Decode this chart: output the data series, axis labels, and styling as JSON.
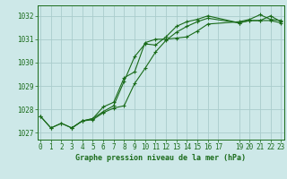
{
  "background_color": "#cde8e8",
  "grid_color": "#aacccc",
  "line_color": "#1a6b1a",
  "marker_color": "#1a6b1a",
  "xlabel": "Graphe pression niveau de la mer (hPa)",
  "xlabel_fontsize": 6.0,
  "tick_fontsize": 5.5,
  "xlim": [
    -0.3,
    23.3
  ],
  "ylim": [
    1026.7,
    1032.45
  ],
  "yticks": [
    1027,
    1028,
    1029,
    1030,
    1031,
    1032
  ],
  "xtick_positions": [
    0,
    1,
    2,
    3,
    4,
    5,
    6,
    7,
    8,
    9,
    10,
    11,
    12,
    13,
    14,
    15,
    16,
    17,
    19,
    20,
    21,
    22,
    23
  ],
  "xtick_labels": [
    "0",
    "1",
    "2",
    "3",
    "4",
    "5",
    "6",
    "7",
    "8",
    "9",
    "10",
    "11",
    "12",
    "13",
    "14",
    "15",
    "16",
    "17",
    "19",
    "20",
    "21",
    "22",
    "23"
  ],
  "series1": {
    "x": [
      0,
      1,
      2,
      3,
      4,
      5,
      6,
      7,
      8,
      9,
      10,
      11,
      12,
      13,
      14,
      15,
      16,
      19,
      20,
      21,
      22,
      23
    ],
    "y": [
      1027.7,
      1027.2,
      1027.4,
      1027.2,
      1027.5,
      1027.6,
      1028.1,
      1028.3,
      1029.35,
      1029.6,
      1030.85,
      1031.0,
      1031.0,
      1031.05,
      1031.1,
      1031.35,
      1031.65,
      1031.75,
      1031.85,
      1032.05,
      1031.85,
      1031.8
    ]
  },
  "series2": {
    "x": [
      3,
      4,
      5,
      6,
      7,
      8,
      9,
      10,
      11,
      12,
      13,
      14,
      15,
      16,
      19,
      20,
      21,
      22,
      23
    ],
    "y": [
      1027.2,
      1027.5,
      1027.6,
      1027.9,
      1028.15,
      1029.2,
      1030.25,
      1030.8,
      1030.75,
      1031.1,
      1031.55,
      1031.75,
      1031.85,
      1032.0,
      1031.7,
      1031.8,
      1031.8,
      1032.0,
      1031.75
    ]
  },
  "series3": {
    "x": [
      0,
      1,
      2,
      3,
      4,
      5,
      6,
      7,
      8,
      9,
      10,
      11,
      12,
      13,
      14,
      15,
      16,
      19,
      20,
      21,
      22,
      23
    ],
    "y": [
      1027.7,
      1027.2,
      1027.4,
      1027.2,
      1027.5,
      1027.55,
      1027.85,
      1028.05,
      1028.15,
      1029.1,
      1029.75,
      1030.45,
      1030.95,
      1031.3,
      1031.55,
      1031.75,
      1031.9,
      1031.7,
      1031.8,
      1031.8,
      1031.8,
      1031.7
    ]
  }
}
